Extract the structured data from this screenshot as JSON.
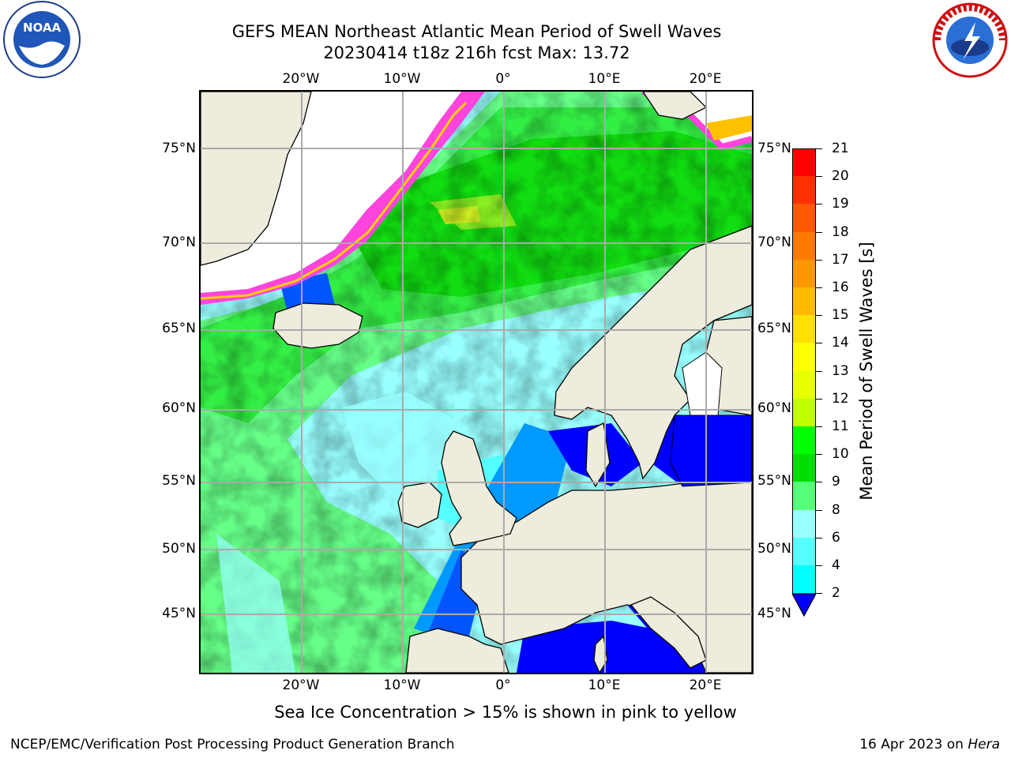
{
  "header": {
    "title_line1": "GEFS MEAN Northeast Atlantic Mean Period of Swell Waves",
    "title_line2": "20230414 t18z 216h fcst   Max: 13.72"
  },
  "logos": {
    "left": "noaa-logo",
    "left_text": "NOAA",
    "right": "national-weather-service-logo",
    "right_text": "NATIONAL WEATHER SERVICE"
  },
  "map": {
    "lon_labels": [
      "20°W",
      "10°W",
      "0°",
      "10°E",
      "20°E"
    ],
    "lat_labels": [
      "75°N",
      "70°N",
      "65°N",
      "60°N",
      "55°N",
      "50°N",
      "45°N"
    ],
    "colors": {
      "land": "#eeecdc",
      "ocean_low": "#99ffff",
      "ice": "#ffffff"
    }
  },
  "colorbar": {
    "label": "Mean Period of Swell Waves [s]",
    "ticks": [
      "21",
      "20",
      "19",
      "18",
      "17",
      "16",
      "15",
      "14",
      "13",
      "12",
      "11",
      "10",
      "9",
      "8",
      "6",
      "4",
      "2"
    ],
    "colors": [
      "#ff0000",
      "#ff3000",
      "#ff5a00",
      "#ff7a00",
      "#ff9800",
      "#ffba00",
      "#ffe000",
      "#ffff00",
      "#e8ff00",
      "#c0ff00",
      "#00ff00",
      "#00dd00",
      "#55ff77",
      "#99ffff",
      "#55ffff",
      "#00ffff",
      "#0099ff",
      "#0000ff"
    ]
  },
  "notes": {
    "sea_ice": "Sea Ice Concentration > 15% is shown in pink to yellow",
    "footer_left": "NCEP/EMC/Verification Post Processing Product Generation Branch",
    "footer_right_date": "16 Apr 2023 on ",
    "footer_right_machine": "Hera"
  }
}
